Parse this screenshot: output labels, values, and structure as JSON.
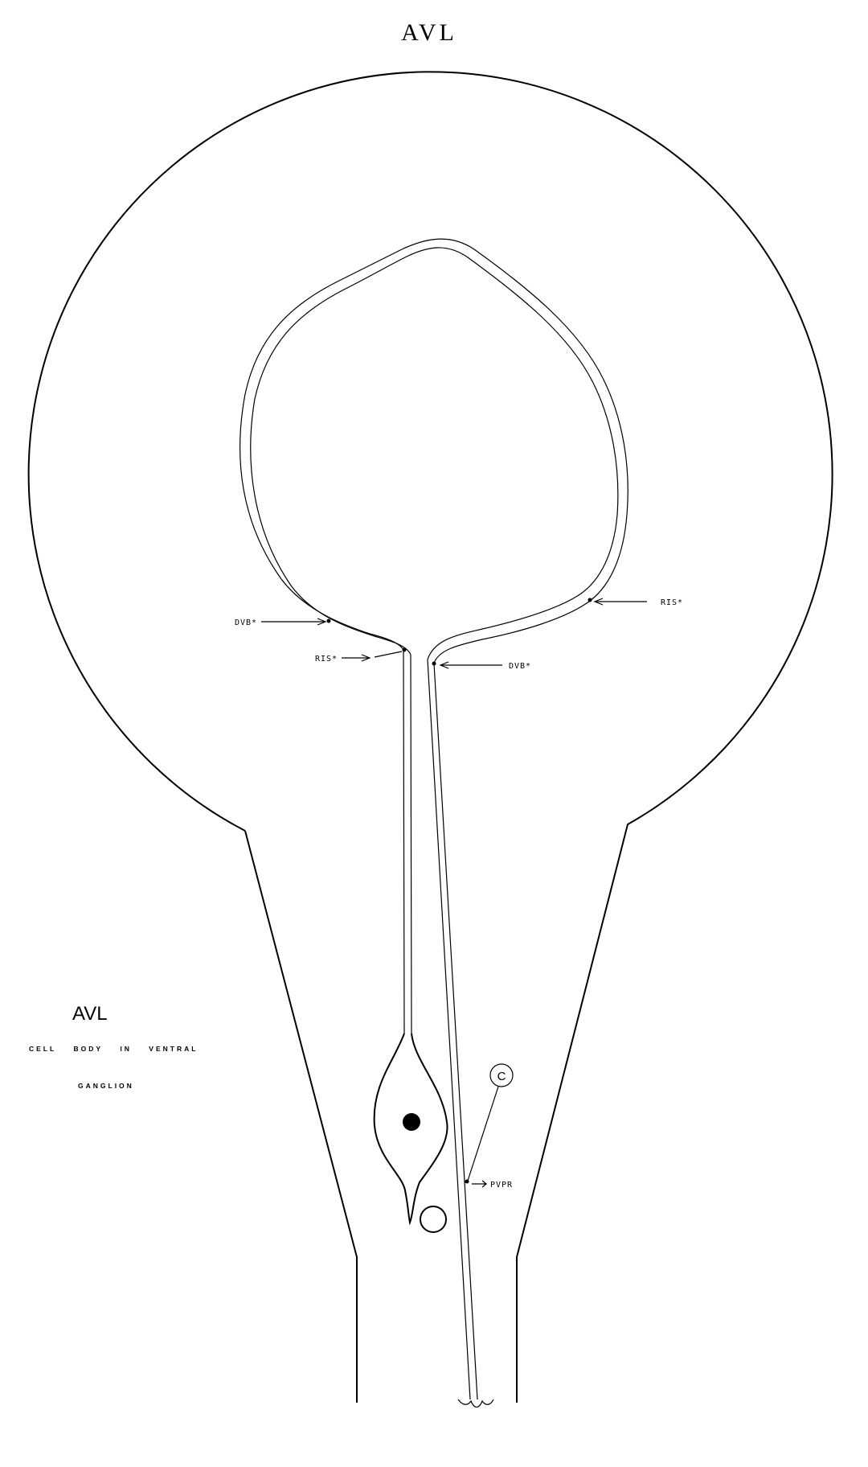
{
  "title": "AVL",
  "legend": {
    "name": "AVL",
    "line1": "CELL    BODY    IN    VENTRAL",
    "line2": "GANGLION"
  },
  "labels": {
    "dvb_left": "DVB*",
    "ris_left": "RIS*",
    "ris_right": "RIS*",
    "dvb_right": "DVB*",
    "pvpr": "PVPR",
    "c_marker": "C"
  }
}
